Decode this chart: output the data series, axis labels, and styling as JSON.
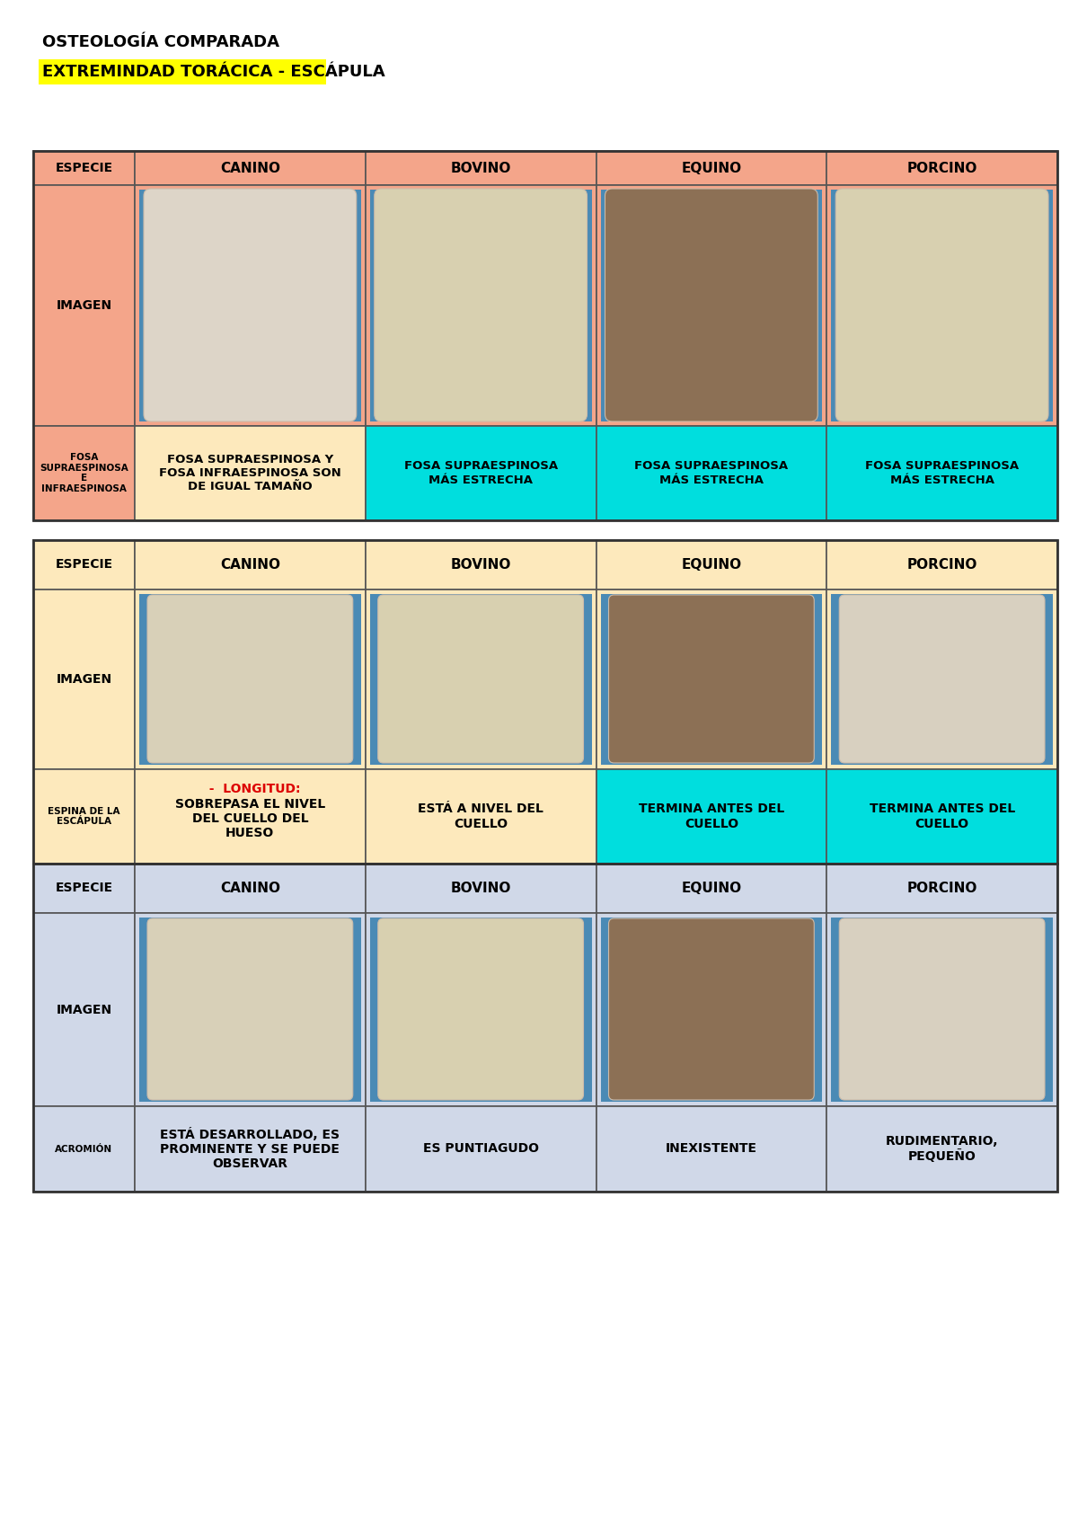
{
  "title": "OSTEOLOGÍA COMPARADA",
  "subtitle": "EXTREMINDAD TORÁCICA - ESCÁPULA",
  "subtitle_bg": "#ffff00",
  "page_bg": "#ffffff",
  "species": [
    "CANINO",
    "BOVINO",
    "EQUINO",
    "PORCINO"
  ],
  "sec1_header_bg": "#f4a58a",
  "sec1_image_bg": "#f4a58a",
  "sec1_desc_label_bg": "#f4a58a",
  "sec1_desc_bgs": [
    "#fde9bc",
    "#00dede",
    "#00dede",
    "#00dede"
  ],
  "sec1_desc_texts": [
    "FOSA SUPRAESPINOSA Y\nFOSA INFRAESPINOSA SON\nDE IGUAL TAMAÑO",
    "FOSA SUPRAESPINOSA\nMÁS ESTRECHA",
    "FOSA SUPRAESPINOSA\nMÁS ESTRECHA",
    "FOSA SUPRAESPINOSA\nMÁS ESTRECHA"
  ],
  "sec1_label": "FOSA\nSUPRAESPINOSA\nE\nINFRAESPINOSA",
  "sec2_header_bg": "#fde9bc",
  "sec2_image_bg": "#fde9bc",
  "sec2_desc_label_bg": "#fde9bc",
  "sec2_desc_bgs": [
    "#fde9bc",
    "#fde9bc",
    "#00dede",
    "#00dede"
  ],
  "sec2_desc_texts": [
    "SOBREPASA EL NIVEL\nDEL CUELLO DEL\nHUESO",
    "ESTÁ A NIVEL DEL\nCUELLO",
    "TERMINA ANTES DEL\nCUELLO",
    "TERMINA ANTES DEL\nCUELLO"
  ],
  "sec2_label": "ESPINA DE LA\nESCÁPULA",
  "sec2_longitud": "  -  LONGITUD:",
  "sec2_longitud_color": "#dd0000",
  "sec3_header_bg": "#d0d8e8",
  "sec3_image_bg": "#d0d8e8",
  "sec3_desc_label_bg": "#d0d8e8",
  "sec3_desc_bgs": [
    "#d0d8e8",
    "#d0d8e8",
    "#d0d8e8",
    "#d0d8e8"
  ],
  "sec3_desc_texts": [
    "ESTÁ DESARROLLADO, ES\nPROMINENTE Y SE PUEDE\nOBSERVAR",
    "ES PUNTIAGUDO",
    "INEXISTENTE",
    "RUDIMENTARIO,\nPEQUEÑO"
  ],
  "sec3_label": "ACROMIÓN",
  "img1_colors": [
    "#e8e0d4",
    "#e8dfc8",
    "#8a7060",
    "#e8dfc8"
  ],
  "img1_bg_colors": [
    "#5090c0",
    "#5090c0",
    "#5090c0",
    "#5090c0"
  ],
  "img2_colors": [
    "#e8e0d4",
    "#e8dfc8",
    "#8a7060",
    "#e8e0d4"
  ],
  "img2_bg_colors": [
    "#5090c0",
    "#5090c0",
    "#5090c0",
    "#5090c0"
  ],
  "img3_colors": [
    "#e8e0d4",
    "#e8dfc8",
    "#8a7060",
    "#e8e0d4"
  ],
  "img3_bg_colors": [
    "#5090c0",
    "#5090c0",
    "#5090c0",
    "#5090c0"
  ]
}
